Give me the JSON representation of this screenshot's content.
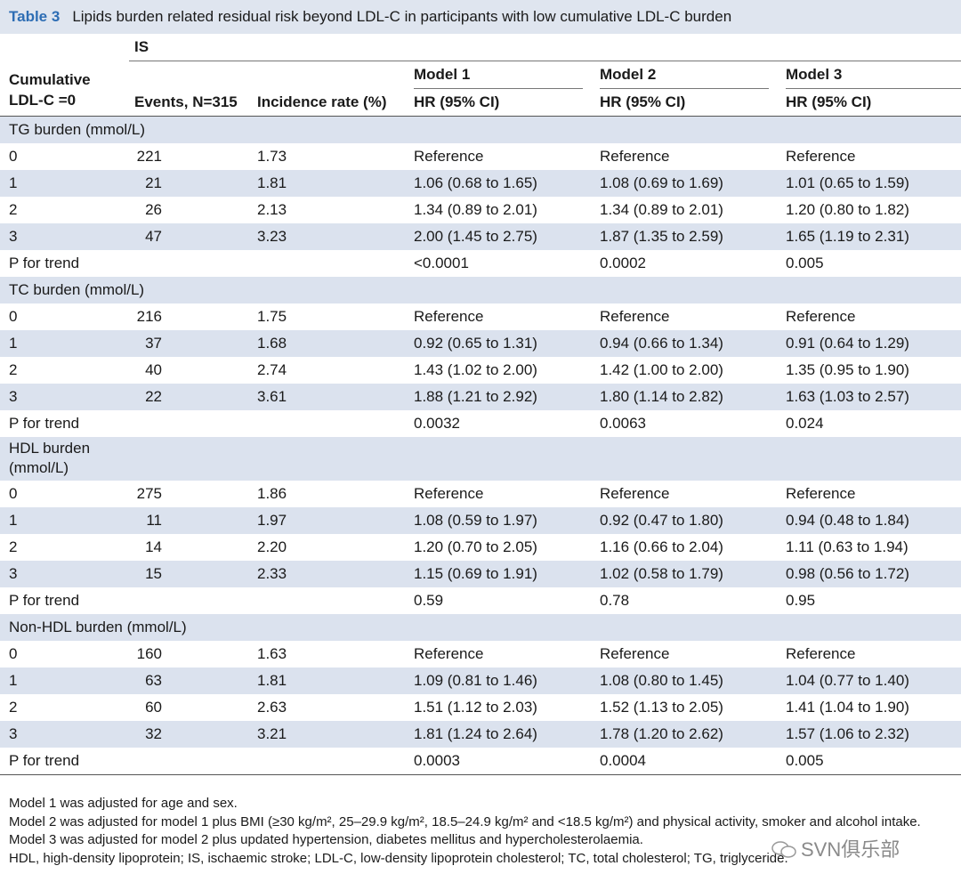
{
  "title": {
    "label": "Table 3",
    "text": "Lipids burden related residual risk beyond LDL-C in participants with low cumulative LDL-C burden"
  },
  "header": {
    "group": "IS",
    "row_label": "Cumulative LDL-C =0",
    "events": "Events, N=315",
    "incidence": "Incidence rate (%)",
    "models": [
      "Model 1",
      "Model 2",
      "Model 3"
    ],
    "hr": [
      "HR (95% CI)",
      "HR (95% CI)",
      "HR (95% CI)"
    ]
  },
  "sections": [
    {
      "name": [
        "TG burden (mmol/L)"
      ],
      "rows": [
        {
          "label": "0",
          "events": "221",
          "rate": "1.73",
          "hr": [
            "Reference",
            "Reference",
            "Reference"
          ]
        },
        {
          "label": "1",
          "events": "21",
          "rate": "1.81",
          "hr": [
            "1.06 (0.68 to 1.65)",
            "1.08 (0.69 to 1.69)",
            "1.01 (0.65 to 1.59)"
          ]
        },
        {
          "label": "2",
          "events": "26",
          "rate": "2.13",
          "hr": [
            "1.34 (0.89 to 2.01)",
            "1.34 (0.89 to 2.01)",
            "1.20 (0.80 to 1.82)"
          ]
        },
        {
          "label": "3",
          "events": "47",
          "rate": "3.23",
          "hr": [
            "2.00 (1.45 to 2.75)",
            "1.87 (1.35 to 2.59)",
            "1.65 (1.19 to 2.31)"
          ]
        },
        {
          "label": "P for trend",
          "hr": [
            "<0.0001",
            "0.0002",
            "0.005"
          ]
        }
      ]
    },
    {
      "name": [
        "TC burden (mmol/L)"
      ],
      "rows": [
        {
          "label": "0",
          "events": "216",
          "rate": "1.75",
          "hr": [
            "Reference",
            "Reference",
            "Reference"
          ]
        },
        {
          "label": "1",
          "events": "37",
          "rate": "1.68",
          "hr": [
            "0.92 (0.65 to 1.31)",
            "0.94 (0.66 to 1.34)",
            "0.91 (0.64 to 1.29)"
          ]
        },
        {
          "label": "2",
          "events": "40",
          "rate": "2.74",
          "hr": [
            "1.43 (1.02 to 2.00)",
            "1.42 (1.00 to 2.00)",
            "1.35 (0.95 to 1.90)"
          ]
        },
        {
          "label": "3",
          "events": "22",
          "rate": "3.61",
          "hr": [
            "1.88 (1.21 to 2.92)",
            "1.80 (1.14 to 2.82)",
            "1.63 (1.03 to 2.57)"
          ]
        },
        {
          "label": "P for trend",
          "hr": [
            "0.0032",
            "0.0063",
            "0.024"
          ]
        }
      ]
    },
    {
      "name": [
        "HDL burden",
        "(mmol/L)"
      ],
      "rows": [
        {
          "label": "0",
          "events": "275",
          "rate": "1.86",
          "hr": [
            "Reference",
            "Reference",
            "Reference"
          ]
        },
        {
          "label": "1",
          "events": "11",
          "rate": "1.97",
          "hr": [
            "1.08 (0.59 to 1.97)",
            "0.92 (0.47 to 1.80)",
            "0.94 (0.48 to 1.84)"
          ]
        },
        {
          "label": "2",
          "events": "14",
          "rate": "2.20",
          "hr": [
            "1.20 (0.70 to 2.05)",
            "1.16 (0.66 to 2.04)",
            "1.11 (0.63 to 1.94)"
          ]
        },
        {
          "label": "3",
          "events": "15",
          "rate": "2.33",
          "hr": [
            "1.15 (0.69 to 1.91)",
            "1.02 (0.58 to 1.79)",
            "0.98 (0.56 to 1.72)"
          ]
        },
        {
          "label": "P for trend",
          "hr": [
            "0.59",
            "0.78",
            "0.95"
          ]
        }
      ]
    },
    {
      "name": [
        "Non-HDL burden (mmol/L)"
      ],
      "rows": [
        {
          "label": "0",
          "events": "160",
          "rate": "1.63",
          "hr": [
            "Reference",
            "Reference",
            "Reference"
          ]
        },
        {
          "label": "1",
          "events": "63",
          "rate": "1.81",
          "hr": [
            "1.09 (0.81 to 1.46)",
            "1.08 (0.80 to 1.45)",
            "1.04 (0.77 to 1.40)"
          ]
        },
        {
          "label": "2",
          "events": "60",
          "rate": "2.63",
          "hr": [
            "1.51 (1.12 to 2.03)",
            "1.52 (1.13 to 2.05)",
            "1.41 (1.04 to 1.90)"
          ]
        },
        {
          "label": "3",
          "events": "32",
          "rate": "3.21",
          "hr": [
            "1.81 (1.24 to 2.64)",
            "1.78 (1.20 to 2.62)",
            "1.57 (1.06 to 2.32)"
          ]
        },
        {
          "label": "P for trend",
          "hr": [
            "0.0003",
            "0.0004",
            "0.005"
          ]
        }
      ]
    }
  ],
  "footnotes": [
    "Model 1 was adjusted for age and sex.",
    "Model 2 was adjusted for model 1 plus BMI (≥30 kg/m², 25–29.9 kg/m², 18.5–24.9 kg/m² and <18.5 kg/m²) and physical activity, smoker and alcohol intake.",
    "Model 3 was adjusted for model 2 plus updated hypertension, diabetes mellitus and hypercholesterolaemia.",
    "HDL, high-density lipoprotein; IS, ischaemic stroke; LDL-C, low-density lipoprotein cholesterol; TC, total cholesterol; TG, triglyceride."
  ],
  "watermark": "SVN俱乐部"
}
